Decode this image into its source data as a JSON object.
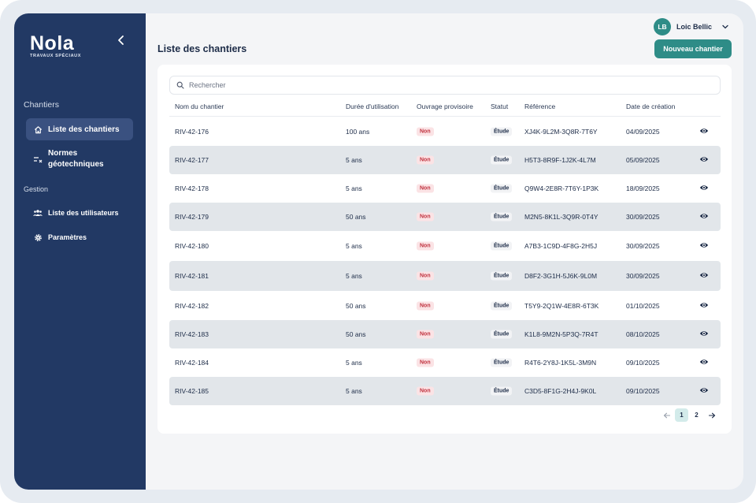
{
  "brand": {
    "logo_text": "Nola",
    "logo_subtitle": "TRAVAUX SPÉCIAUX"
  },
  "sidebar": {
    "section_chantiers": "Chantiers",
    "section_gestion": "Gestion",
    "items": [
      {
        "label": "Liste des chantiers",
        "icon": "home-icon",
        "active": true
      },
      {
        "label_line1": "Normes",
        "label_line2": "géotechniques",
        "icon": "norms-icon"
      },
      {
        "label": "Liste des utilisateurs",
        "icon": "users-icon"
      },
      {
        "label": "Paramètres",
        "icon": "gear-icon"
      }
    ]
  },
  "header": {
    "page_title": "Liste des chantiers",
    "user_initials": "LB",
    "user_name": "Loic Bellic",
    "new_button": "Nouveau chantier"
  },
  "search": {
    "placeholder": "Rechercher",
    "value": ""
  },
  "table": {
    "columns": [
      "Nom du chantier",
      "Durée d'utilisation",
      "Ouvrage provisoire",
      "Statut",
      "Référence",
      "Date de création"
    ],
    "rows": [
      {
        "name": "RIV-42-176",
        "duree": "100 ans",
        "provisoire": "Non",
        "statut": "Étude",
        "ref": "XJ4K-9L2M-3Q8R-7T6Y",
        "date": "04/09/2025"
      },
      {
        "name": "RIV-42-177",
        "duree": "5 ans",
        "provisoire": "Non",
        "statut": "Étude",
        "ref": "H5T3-8R9F-1J2K-4L7M",
        "date": "05/09/2025"
      },
      {
        "name": "RIV-42-178",
        "duree": "5 ans",
        "provisoire": "Non",
        "statut": "Étude",
        "ref": "Q9W4-2E8R-7T6Y-1P3K",
        "date": "18/09/2025"
      },
      {
        "name": "RIV-42-179",
        "duree": "50 ans",
        "provisoire": "Non",
        "statut": "Étude",
        "ref": "M2N5-8K1L-3Q9R-0T4Y",
        "date": "30/09/2025"
      },
      {
        "name": "RIV-42-180",
        "duree": "5 ans",
        "provisoire": "Non",
        "statut": "Étude",
        "ref": "A7B3-1C9D-4F8G-2H5J",
        "date": "30/09/2025"
      },
      {
        "name": "RIV-42-181",
        "duree": "5 ans",
        "provisoire": "Non",
        "statut": "Étude",
        "ref": "D8F2-3G1H-5J6K-9L0M",
        "date": "30/09/2025"
      },
      {
        "name": "RIV-42-182",
        "duree": "50 ans",
        "provisoire": "Non",
        "statut": "Étude",
        "ref": "T5Y9-2Q1W-4E8R-6T3K",
        "date": "01/10/2025"
      },
      {
        "name": "RIV-42-183",
        "duree": "50 ans",
        "provisoire": "Non",
        "statut": "Étude",
        "ref": "K1L8-9M2N-5P3Q-7R4T",
        "date": "08/10/2025"
      },
      {
        "name": "RIV-42-184",
        "duree": "5 ans",
        "provisoire": "Non",
        "statut": "Étude",
        "ref": "R4T6-2Y8J-1K5L-3M9N",
        "date": "09/10/2025"
      },
      {
        "name": "RIV-42-185",
        "duree": "5 ans",
        "provisoire": "Non",
        "statut": "Étude",
        "ref": "C3D5-8F1G-2H4J-9K0L",
        "date": "09/10/2025"
      }
    ]
  },
  "pagination": {
    "pages": [
      "1",
      "2"
    ],
    "current": "1"
  },
  "colors": {
    "sidebar": "#223964",
    "accent": "#2e8c87",
    "danger": "#c0323f"
  }
}
